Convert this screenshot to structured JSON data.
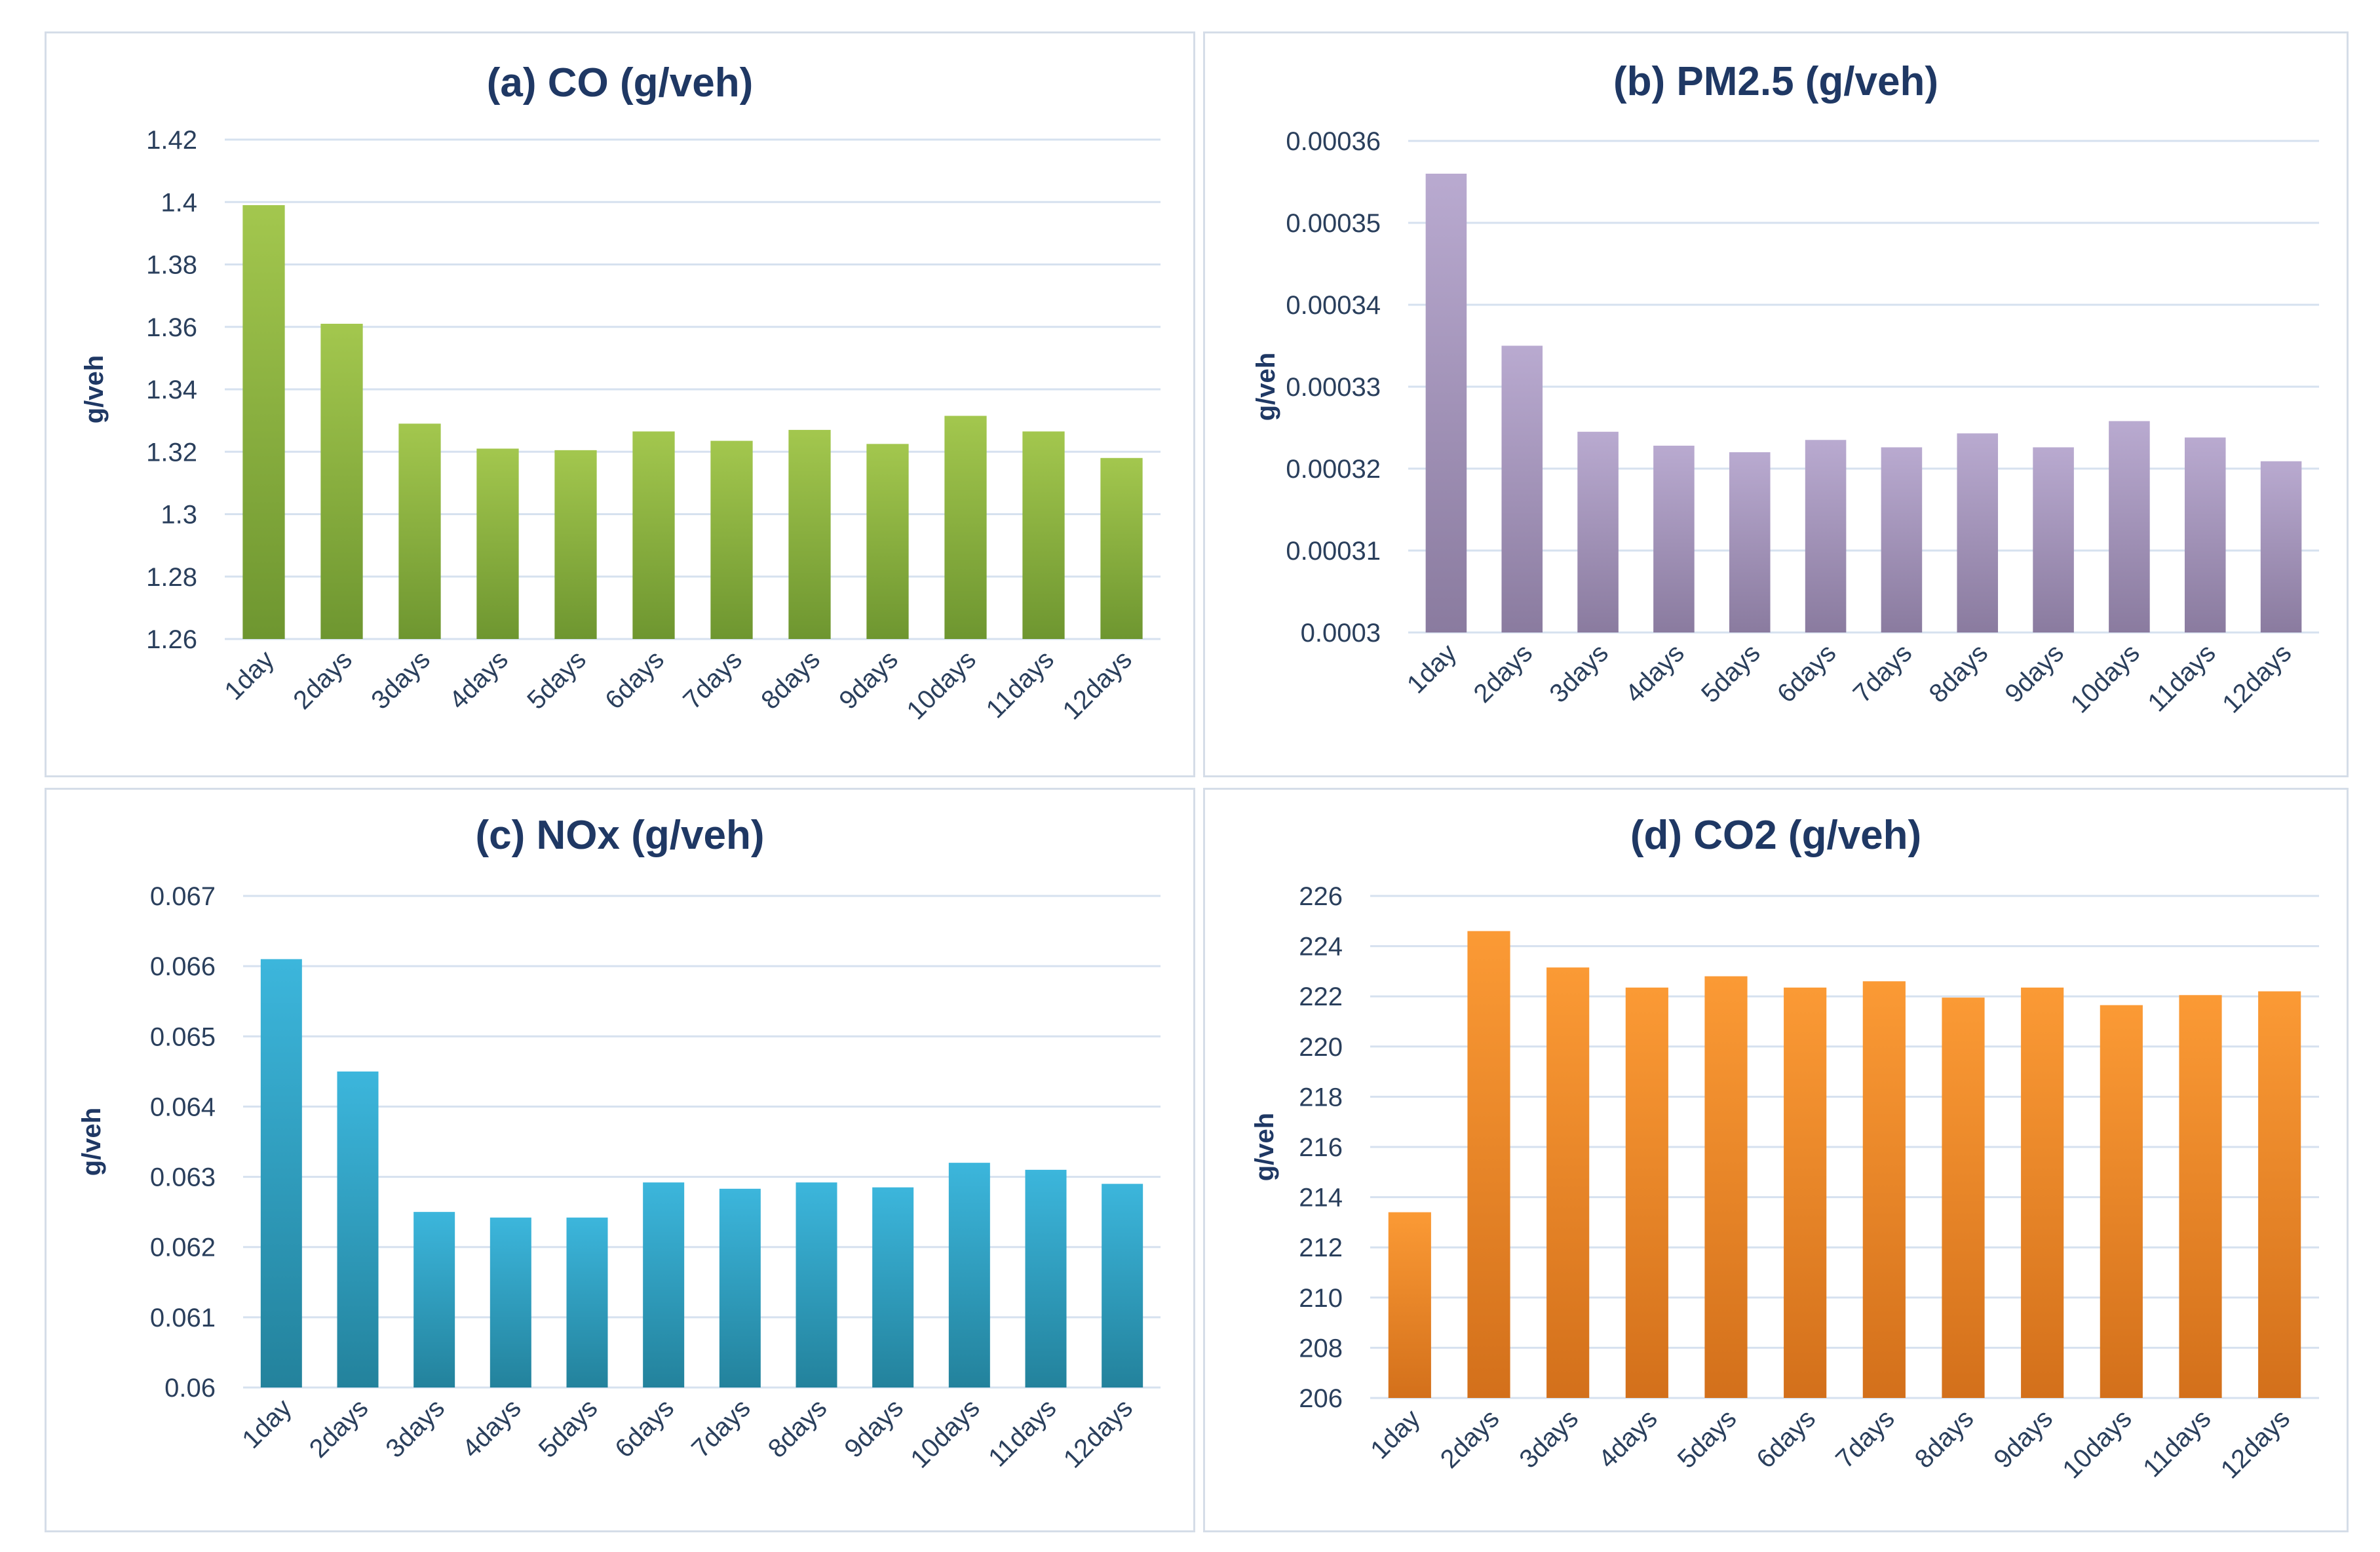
{
  "chart_data": [
    {
      "id": "a",
      "type": "bar",
      "title": "(a) CO (g/veh)",
      "ylabel": "g/veh",
      "xlabel": "",
      "ylim": [
        1.26,
        1.42
      ],
      "ytick_labels": [
        "1.26",
        "1.28",
        "1.3",
        "1.32",
        "1.34",
        "1.36",
        "1.38",
        "1.4",
        "1.42"
      ],
      "categories": [
        "1day",
        "2days",
        "3days",
        "4days",
        "5days",
        "6days",
        "7days",
        "8days",
        "9days",
        "10days",
        "11days",
        "12days"
      ],
      "values": [
        1.399,
        1.361,
        1.329,
        1.321,
        1.3205,
        1.3265,
        1.3235,
        1.327,
        1.3225,
        1.3315,
        1.3265,
        1.318
      ],
      "color_top": "#a3c74e",
      "color_bottom": "#6e9630",
      "grid": true
    },
    {
      "id": "b",
      "type": "bar",
      "title": "(b) PM2.5 (g/veh)",
      "ylabel": "g/veh",
      "xlabel": "",
      "ylim": [
        0.0003,
        0.00036
      ],
      "ytick_labels": [
        "0.0003",
        "0.00031",
        "0.00032",
        "0.00033",
        "0.00034",
        "0.00035",
        "0.00036"
      ],
      "categories": [
        "1day",
        "2days",
        "3days",
        "4days",
        "5days",
        "6days",
        "7days",
        "8days",
        "9days",
        "10days",
        "11days",
        "12days"
      ],
      "values": [
        0.000356,
        0.000335,
        0.0003245,
        0.0003228,
        0.000322,
        0.0003235,
        0.0003226,
        0.0003243,
        0.0003226,
        0.0003258,
        0.0003238,
        0.0003209
      ],
      "color_top": "#b9aad0",
      "color_bottom": "#8a7b9f",
      "grid": true
    },
    {
      "id": "c",
      "type": "bar",
      "title": "(c) NOx (g/veh)",
      "ylabel": "g/veh",
      "xlabel": "",
      "ylim": [
        0.06,
        0.067
      ],
      "ytick_labels": [
        "0.06",
        "0.061",
        "0.062",
        "0.063",
        "0.064",
        "0.065",
        "0.066",
        "0.067"
      ],
      "categories": [
        "1day",
        "2days",
        "3days",
        "4days",
        "5days",
        "6days",
        "7days",
        "8days",
        "9days",
        "10days",
        "11days",
        "12days"
      ],
      "values": [
        0.0661,
        0.0645,
        0.0625,
        0.06242,
        0.06242,
        0.06292,
        0.06283,
        0.06292,
        0.06285,
        0.0632,
        0.0631,
        0.0629
      ],
      "color_top": "#3cb6dc",
      "color_bottom": "#23829c",
      "grid": true
    },
    {
      "id": "d",
      "type": "bar",
      "title": "(d) CO2 (g/veh)",
      "ylabel": "g/veh",
      "xlabel": "",
      "ylim": [
        206,
        226
      ],
      "ytick_labels": [
        "206",
        "208",
        "210",
        "212",
        "214",
        "216",
        "218",
        "220",
        "222",
        "224",
        "226"
      ],
      "categories": [
        "1day",
        "2days",
        "3days",
        "4days",
        "5days",
        "6days",
        "7days",
        "8days",
        "9days",
        "10days",
        "11days",
        "12days"
      ],
      "values": [
        213.4,
        224.6,
        223.15,
        222.35,
        222.8,
        222.35,
        222.6,
        221.95,
        222.35,
        221.65,
        222.05,
        222.2
      ],
      "color_top": "#fb9a35",
      "color_bottom": "#d3701b",
      "grid": true
    }
  ]
}
